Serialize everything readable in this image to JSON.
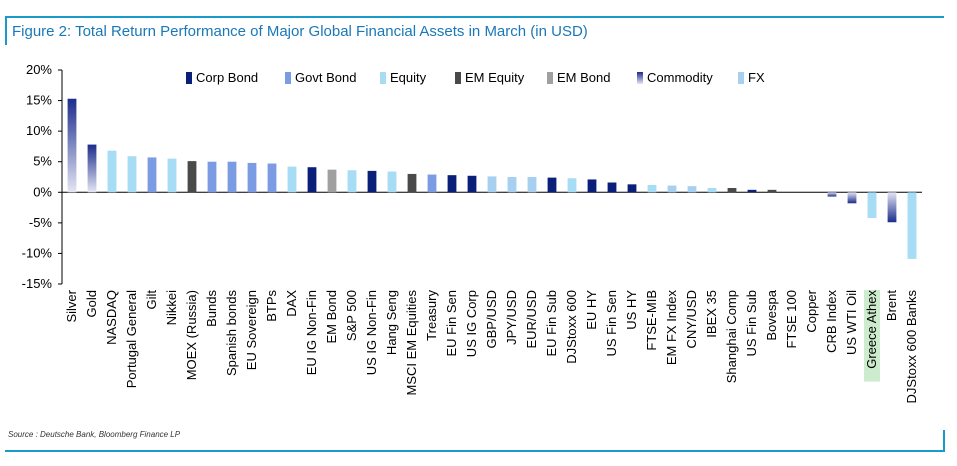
{
  "title": "Figure 2: Total Return Performance of Major Global Financial Assets in March (in USD)",
  "source": "Source : Deutsche Bank, Bloomberg Finance LP",
  "colors": {
    "Corp Bond": "#0a1f7a",
    "Govt Bond": "#7b9be2",
    "Equity": "#a6dcf4",
    "EM Equity": "#4a4a4a",
    "EM Bond": "#a0a0a0",
    "Commodity": "#1c2c8c",
    "FX": "#a6cff0",
    "frame": "#1a9ac9",
    "highlight": "#cdeccd"
  },
  "chart_data": {
    "type": "bar",
    "title": "Figure 2: Total Return Performance of Major Global Financial Assets in March (in USD)",
    "xlabel": "",
    "ylabel": "",
    "ylim": [
      -15,
      20
    ],
    "yticks": [
      20,
      15,
      10,
      5,
      0,
      -5,
      -10,
      -15
    ],
    "ytick_labels": [
      "20%",
      "15%",
      "10%",
      "5%",
      "0%",
      "-5%",
      "-10%",
      "-15%"
    ],
    "grid": false,
    "legend_position": "top",
    "legend": [
      "Corp Bond",
      "Govt Bond",
      "Equity",
      "EM Equity",
      "EM Bond",
      "Commodity",
      "FX"
    ],
    "highlighted_category": "Greece Athex",
    "categories": [
      "Silver",
      "Gold",
      "NASDAQ",
      "Portugal General",
      "Gilt",
      "Nikkei",
      "MOEX (Russia)",
      "Bunds",
      "Spanish bonds",
      "EU Sovereign",
      "BTPs",
      "DAX",
      "EU IG Non-Fin",
      "EM Bond",
      "S&P 500",
      "US IG Non-Fin",
      "Hang Seng",
      "MSCI EM Equities",
      "Treasury",
      "EU Fin Sen",
      "US IG Corp",
      "GBP/USD",
      "JPY/USD",
      "EUR/USD",
      "EU Fin Sub",
      "DJStoxx 600",
      "EU HY",
      "US Fin Sen",
      "US HY",
      "FTSE-MIB",
      "EM FX Index",
      "CNY/USD",
      "IBEX 35",
      "Shanghai Comp",
      "US Fin Sub",
      "Bovespa",
      "FTSE 100",
      "Copper",
      "CRB Index",
      "US WTI Oil",
      "Greece Athex",
      "Brent",
      "DJStoxx 600 Banks"
    ],
    "values": [
      15.3,
      7.8,
      6.8,
      5.9,
      5.7,
      5.5,
      5.1,
      5.0,
      5.0,
      4.8,
      4.7,
      4.2,
      4.1,
      3.7,
      3.6,
      3.5,
      3.4,
      3.0,
      2.9,
      2.8,
      2.7,
      2.6,
      2.5,
      2.5,
      2.4,
      2.3,
      2.1,
      1.6,
      1.3,
      1.2,
      1.1,
      1.0,
      0.7,
      0.7,
      0.4,
      0.4,
      0.0,
      0.0,
      -0.7,
      -1.8,
      -4.2,
      -4.9,
      -10.9
    ],
    "asset_class": [
      "Commodity",
      "Commodity",
      "Equity",
      "Equity",
      "Govt Bond",
      "Equity",
      "EM Equity",
      "Govt Bond",
      "Govt Bond",
      "Govt Bond",
      "Govt Bond",
      "Equity",
      "Corp Bond",
      "EM Bond",
      "Equity",
      "Corp Bond",
      "Equity",
      "EM Equity",
      "Govt Bond",
      "Corp Bond",
      "Corp Bond",
      "FX",
      "FX",
      "FX",
      "Corp Bond",
      "Equity",
      "Corp Bond",
      "Corp Bond",
      "Corp Bond",
      "Equity",
      "FX",
      "FX",
      "Equity",
      "EM Equity",
      "Corp Bond",
      "EM Equity",
      "Equity",
      "Commodity",
      "Commodity",
      "Commodity",
      "Equity",
      "Commodity",
      "Equity"
    ]
  }
}
